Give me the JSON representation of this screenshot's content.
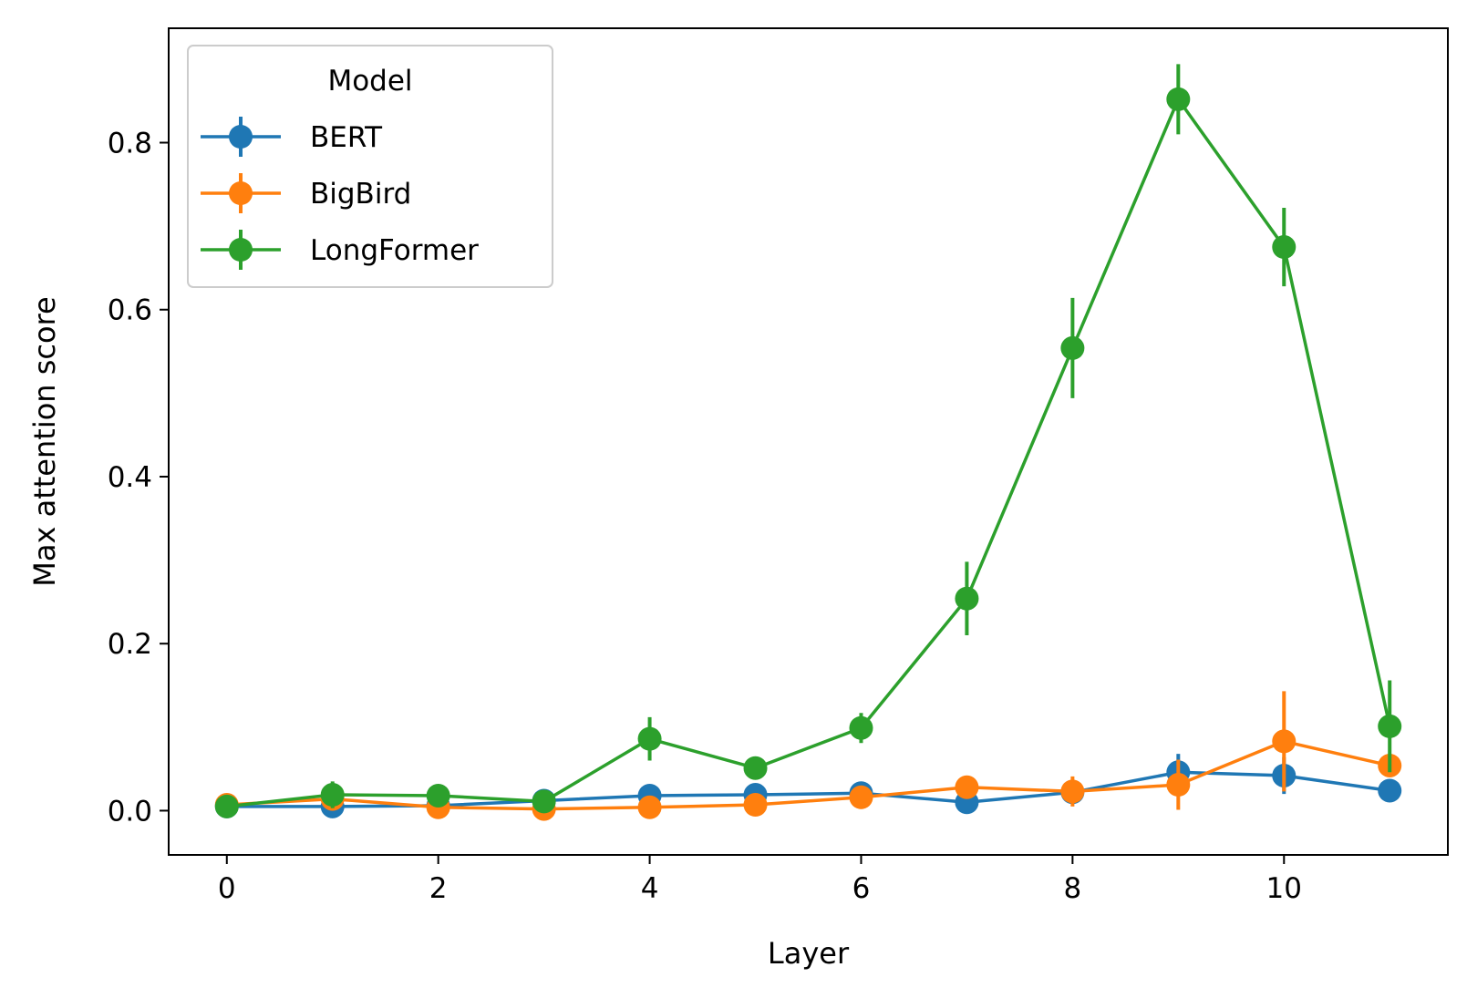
{
  "chart_data": {
    "type": "line",
    "xlabel": "Layer",
    "ylabel": "Max attention score",
    "xlim": [
      -0.55,
      11.55
    ],
    "ylim": [
      -0.053,
      0.937
    ],
    "xticks": [
      0,
      2,
      4,
      6,
      8,
      10
    ],
    "xtick_labels": [
      "0",
      "2",
      "4",
      "6",
      "8",
      "10"
    ],
    "yticks": [
      0.0,
      0.2,
      0.4,
      0.6,
      0.8
    ],
    "ytick_labels": [
      "0.0",
      "0.2",
      "0.4",
      "0.6",
      "0.8"
    ],
    "grid": false,
    "legend": {
      "title": "Model",
      "position": "top-left"
    },
    "x": [
      0,
      1,
      2,
      3,
      4,
      5,
      6,
      7,
      8,
      9,
      10,
      11
    ],
    "series": [
      {
        "name": "BERT",
        "color": "#1f77b4",
        "values": [
          0.005,
          0.005,
          0.006,
          0.012,
          0.018,
          0.019,
          0.021,
          0.01,
          0.022,
          0.046,
          0.042,
          0.024
        ],
        "err_low": [
          0.001,
          0.001,
          0.001,
          0.003,
          0.003,
          0.003,
          0.003,
          0.003,
          0.004,
          0.022,
          0.022,
          0.004
        ],
        "err_high": [
          0.001,
          0.001,
          0.001,
          0.003,
          0.003,
          0.003,
          0.003,
          0.003,
          0.004,
          0.022,
          0.022,
          0.004
        ]
      },
      {
        "name": "BigBird",
        "color": "#ff7f0e",
        "values": [
          0.007,
          0.014,
          0.004,
          0.002,
          0.004,
          0.007,
          0.016,
          0.028,
          0.023,
          0.031,
          0.083,
          0.054
        ],
        "err_low": [
          0.002,
          0.003,
          0.002,
          0.001,
          0.002,
          0.003,
          0.014,
          0.005,
          0.018,
          0.03,
          0.06,
          0.008
        ],
        "err_high": [
          0.002,
          0.003,
          0.002,
          0.001,
          0.002,
          0.003,
          0.014,
          0.005,
          0.018,
          0.03,
          0.06,
          0.008
        ]
      },
      {
        "name": "LongFormer",
        "color": "#2ca02c",
        "values": [
          0.005,
          0.019,
          0.018,
          0.011,
          0.086,
          0.051,
          0.099,
          0.254,
          0.554,
          0.852,
          0.675,
          0.101
        ],
        "err_low": [
          0.003,
          0.016,
          0.004,
          0.004,
          0.026,
          0.006,
          0.018,
          0.044,
          0.06,
          0.042,
          0.047,
          0.055
        ],
        "err_high": [
          0.003,
          0.016,
          0.004,
          0.004,
          0.026,
          0.006,
          0.018,
          0.044,
          0.06,
          0.042,
          0.047,
          0.055
        ]
      }
    ]
  }
}
